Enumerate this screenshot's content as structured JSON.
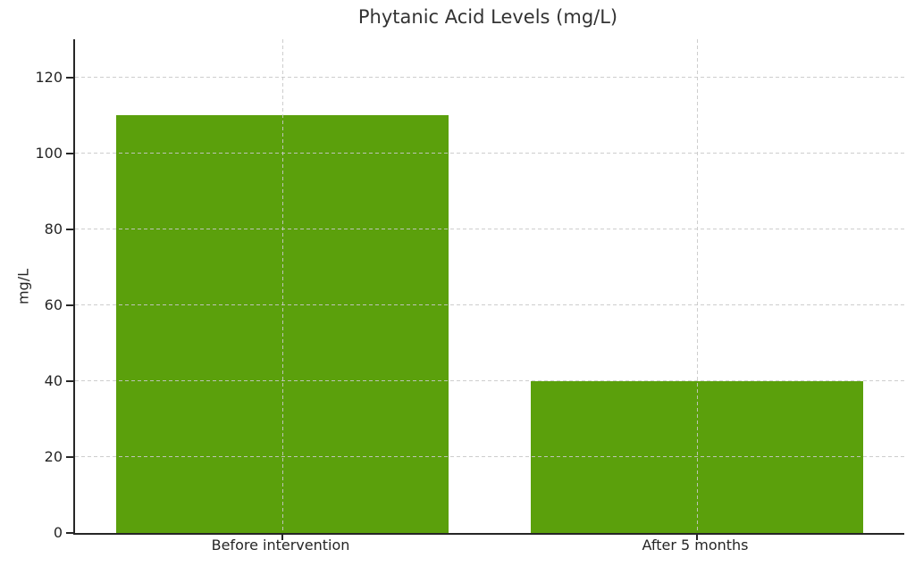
{
  "chart_data": {
    "type": "bar",
    "title": "Phytanic Acid Levels (mg/L)",
    "categories": [
      "Before intervention",
      "After 5 months"
    ],
    "values": [
      110,
      40
    ],
    "xlabel": "",
    "ylabel": "mg/L",
    "yticks": [
      0,
      20,
      40,
      60,
      80,
      100,
      120
    ],
    "ylim": [
      0,
      130
    ],
    "xlim": [
      -0.5,
      1.5
    ],
    "bar_width": 0.8,
    "bar_color": "#5ba00c",
    "grid": "dashed",
    "grid_color": "#c8c8c8",
    "axis_color": "#262626",
    "text_color": "#262626",
    "title_color": "#333333",
    "legend": "none"
  }
}
